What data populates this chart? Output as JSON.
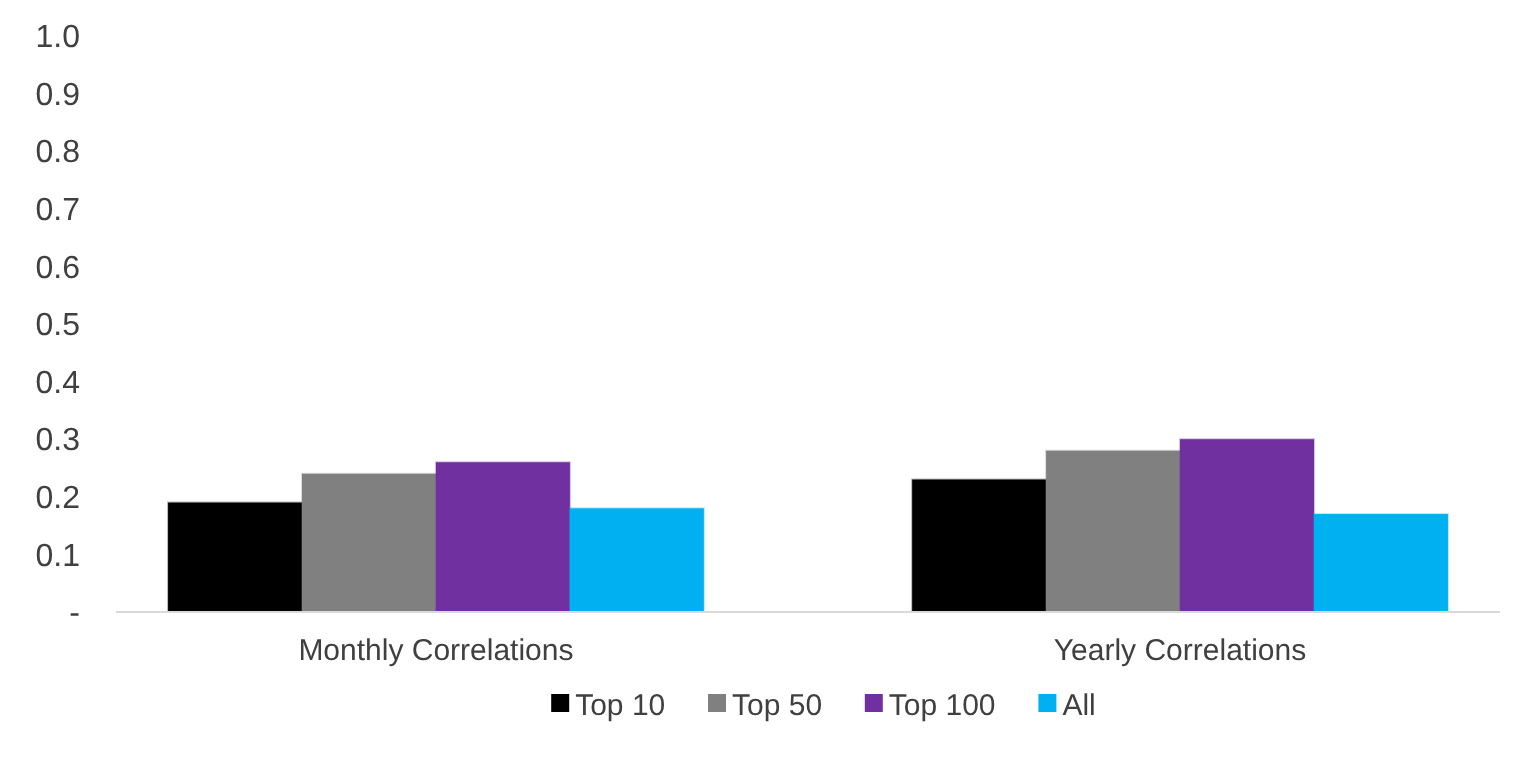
{
  "chart_data": {
    "type": "bar",
    "categories": [
      "Monthly Correlations",
      "Yearly Correlations"
    ],
    "series": [
      {
        "name": "Top 10",
        "color": "#000000",
        "values": [
          0.19,
          0.23
        ]
      },
      {
        "name": "Top 50",
        "color": "#808080",
        "values": [
          0.24,
          0.28
        ]
      },
      {
        "name": "Top 100",
        "color": "#7030a0",
        "values": [
          0.26,
          0.3
        ]
      },
      {
        "name": "All",
        "color": "#00b0f0",
        "values": [
          0.18,
          0.17
        ]
      }
    ],
    "ylim": [
      0,
      1
    ],
    "yticks": [
      {
        "value": 0,
        "label": "-"
      },
      0.1,
      0.2,
      0.3,
      0.4,
      0.5,
      0.6,
      0.7,
      0.8,
      0.9,
      {
        "value": 1,
        "label": "1.0"
      }
    ],
    "grid": false,
    "legend": "bottom"
  }
}
